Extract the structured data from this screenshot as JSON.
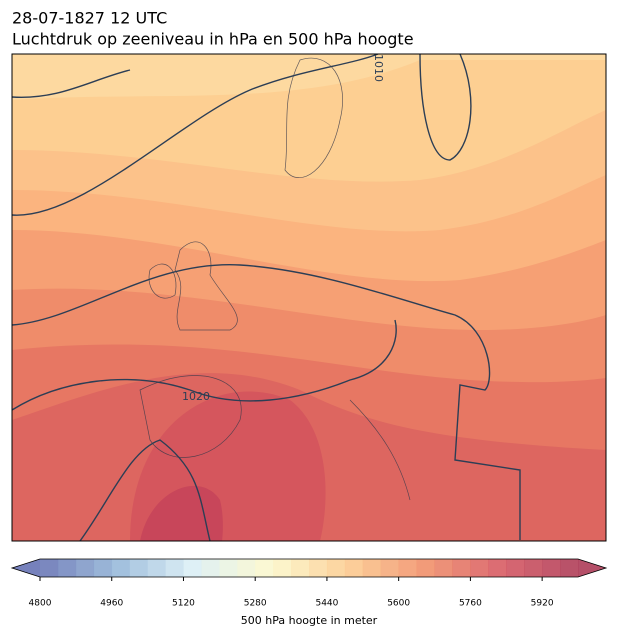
{
  "header": {
    "title_line1": "28-07-1827 12 UTC",
    "title_line2": "Luchtdruk op zeeniveau in hPa en 500 hPa hoogte"
  },
  "map": {
    "isobar_labels": [
      "1010",
      "1020"
    ]
  },
  "colorbar": {
    "label": "500 hPa hoogte in meter",
    "range": [
      4800,
      6000
    ],
    "step": 40,
    "ticks": [
      4800,
      4960,
      5120,
      5280,
      5440,
      5600,
      5760,
      5920
    ],
    "colormap": [
      "#5e6bb0",
      "#8fb3d6",
      "#d9eef4",
      "#fcf8c8",
      "#fcc98a",
      "#f08a62",
      "#d5505a",
      "#a8304e"
    ]
  }
}
